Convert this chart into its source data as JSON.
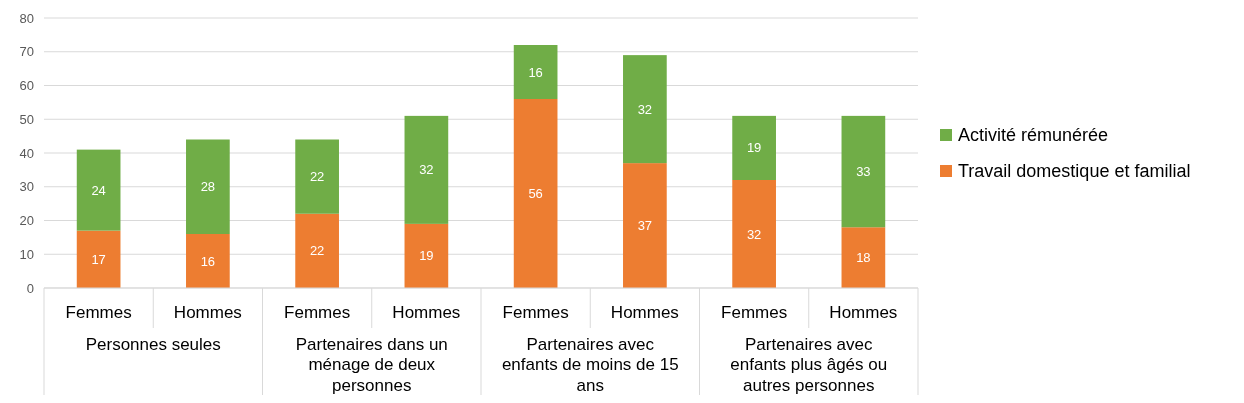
{
  "chart_data": {
    "type": "bar",
    "stacked": true,
    "categories": [
      "Femmes",
      "Hommes",
      "Femmes",
      "Hommes",
      "Femmes",
      "Hommes",
      "Femmes",
      "Hommes"
    ],
    "annotations": [
      "Personnes seules",
      "Partenaires dans un ménage de deux personnes",
      "Partenaires avec enfants de moins de 15 ans",
      "Partenaires avec enfants plus âgés ou autres personnes"
    ],
    "series": [
      {
        "name": "Travail domestique et familial",
        "color": "#ed7d31",
        "values": [
          17,
          16,
          22,
          19,
          56,
          37,
          32,
          18
        ]
      },
      {
        "name": "Activité rémunérée",
        "color": "#70ad47",
        "values": [
          24,
          28,
          22,
          32,
          16,
          32,
          19,
          33
        ]
      }
    ],
    "ylim": [
      0,
      80
    ],
    "yticks": [
      0,
      10,
      20,
      30,
      40,
      50,
      60,
      70,
      80
    ],
    "grid": "y",
    "legend": "right",
    "data_labels": true
  }
}
